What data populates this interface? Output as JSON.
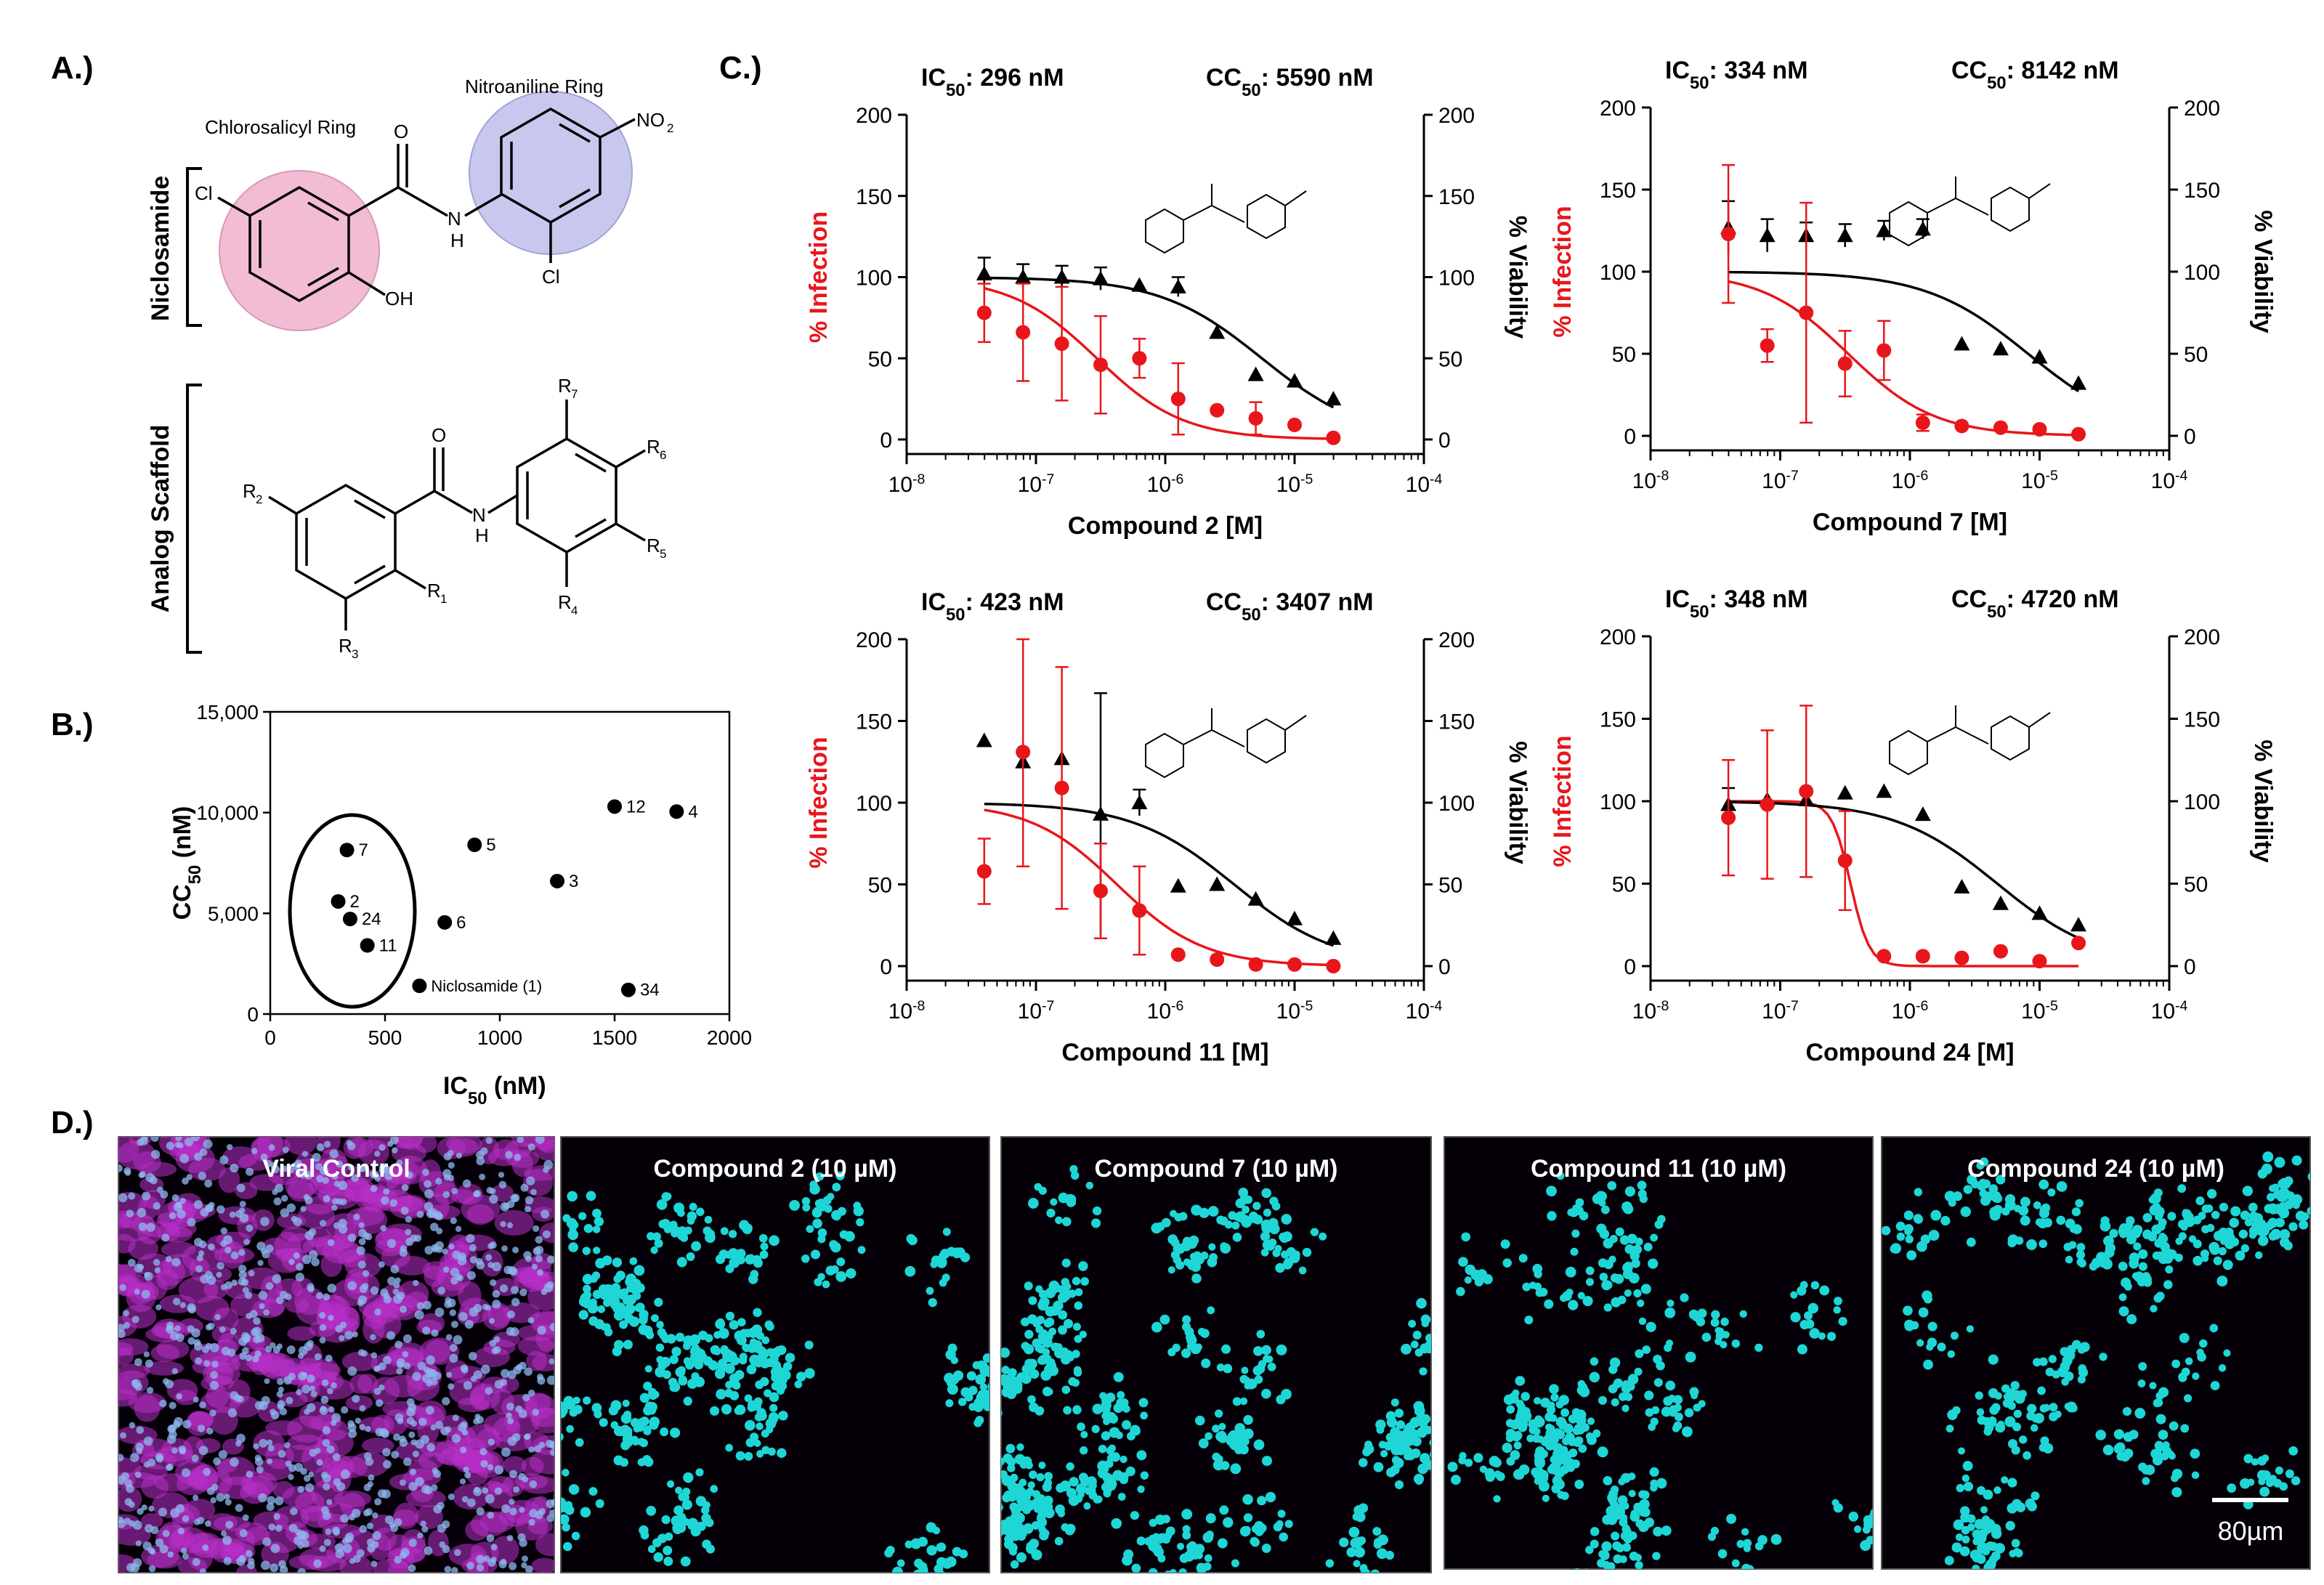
{
  "panels": {
    "A": "A.)",
    "B": "B.)",
    "C": "C.)",
    "D": "D.)"
  },
  "panelA": {
    "ring1": "Chlorosalicyl Ring",
    "ring2": "Nitroaniline Ring",
    "niclosamide_label": "Niclosamide",
    "scaffold_label": "Analog Scaffold",
    "atoms_top": {
      "cl_left": "Cl",
      "o": "O",
      "nh": "H",
      "n": "N",
      "no2": "NO",
      "no2_sub": "2",
      "oh": "OH",
      "cl_bottom": "Cl"
    },
    "atoms_bottom": {
      "r2": "R",
      "r2s": "2",
      "o": "O",
      "nh": "H",
      "n": "N",
      "r1": "R",
      "r1s": "1",
      "r3": "R",
      "r3s": "3",
      "r4": "R",
      "r4s": "4",
      "r5": "R",
      "r5s": "5",
      "r6": "R",
      "r6s": "6",
      "r7": "R",
      "r7s": "7"
    },
    "colors": {
      "ring1": "#f2bcd4",
      "ring2": "#c8c8ee"
    }
  },
  "scatter_chart": {
    "type": "scatter",
    "xlabel": "IC",
    "xlabel_sub": "50",
    "xlabel_unit": " (nM)",
    "ylabel": "CC",
    "ylabel_sub": "50",
    "ylabel_unit": " (nM)",
    "xlim": [
      0,
      2000
    ],
    "ylim": [
      0,
      15000
    ],
    "xticks": [
      0,
      500,
      1000,
      1500,
      2000
    ],
    "xtick_labels": [
      "0",
      "500",
      "1000",
      "1500",
      "2000"
    ],
    "yticks": [
      0,
      5000,
      10000,
      15000
    ],
    "ytick_labels": [
      "0",
      "5,000",
      "10,000",
      "15,000"
    ],
    "points": [
      {
        "label": "7",
        "x": 334,
        "y": 8142
      },
      {
        "label": "2",
        "x": 296,
        "y": 5590
      },
      {
        "label": "24",
        "x": 348,
        "y": 4720
      },
      {
        "label": "11",
        "x": 423,
        "y": 3407
      },
      {
        "label": "Niclosamide (1)",
        "x": 650,
        "y": 1400
      },
      {
        "label": "6",
        "x": 760,
        "y": 4550
      },
      {
        "label": "5",
        "x": 890,
        "y": 8400
      },
      {
        "label": "3",
        "x": 1250,
        "y": 6600
      },
      {
        "label": "12",
        "x": 1500,
        "y": 10300
      },
      {
        "label": "4",
        "x": 1770,
        "y": 10050
      },
      {
        "label": "34",
        "x": 1560,
        "y": 1200
      }
    ]
  },
  "chart_data": [
    {
      "type": "line",
      "id": "c2",
      "ic_label": "IC",
      "ic_sub": "50",
      "ic_value": ": 296 nM",
      "cc_label": "CC",
      "cc_sub": "50",
      "cc_value": ": 5590 nM",
      "xlabel": "Compound 2 [M]",
      "ylabel_left": "% Infection",
      "ylabel_right": "% Viability",
      "ylim": [
        0,
        200
      ],
      "yticks": [
        "0",
        "50",
        "100",
        "150",
        "200"
      ],
      "xtick_base": "10",
      "xtick_exps": [
        "-8",
        "-7",
        "-6",
        "-5",
        "-4"
      ],
      "xlim_log": [
        -8,
        -4
      ],
      "ic50_log": -6.529,
      "cc50_log": -5.253,
      "infection": [
        {
          "x": -7.4,
          "y": 78,
          "err": 18
        },
        {
          "x": -7.1,
          "y": 66,
          "err": 30
        },
        {
          "x": -6.8,
          "y": 59,
          "err": 35
        },
        {
          "x": -6.5,
          "y": 46,
          "err": 30
        },
        {
          "x": -6.2,
          "y": 50,
          "err": 12
        },
        {
          "x": -5.9,
          "y": 25,
          "err": 22
        },
        {
          "x": -5.6,
          "y": 18,
          "err": 0
        },
        {
          "x": -5.3,
          "y": 13,
          "err": 10
        },
        {
          "x": -5.0,
          "y": 9,
          "err": 0
        },
        {
          "x": -4.7,
          "y": 1,
          "err": 0
        }
      ],
      "viability": [
        {
          "x": -7.4,
          "y": 102,
          "err": 10
        },
        {
          "x": -7.1,
          "y": 100,
          "err": 8
        },
        {
          "x": -6.8,
          "y": 100,
          "err": 7
        },
        {
          "x": -6.5,
          "y": 99,
          "err": 7
        },
        {
          "x": -6.2,
          "y": 95,
          "err": 0
        },
        {
          "x": -5.9,
          "y": 94,
          "err": 6
        },
        {
          "x": -5.6,
          "y": 66,
          "err": 0
        },
        {
          "x": -5.3,
          "y": 40,
          "err": 0
        },
        {
          "x": -5.0,
          "y": 36,
          "err": 0
        },
        {
          "x": -4.7,
          "y": 25,
          "err": 0
        }
      ]
    },
    {
      "type": "line",
      "id": "c7",
      "ic_label": "IC",
      "ic_sub": "50",
      "ic_value": ": 334 nM",
      "cc_label": "CC",
      "cc_sub": "50",
      "cc_value": ": 8142 nM",
      "xlabel": "Compound 7 [M]",
      "ylabel_left": "% Infection",
      "ylabel_right": "% Viability",
      "ylim": [
        0,
        200
      ],
      "yticks": [
        "0",
        "50",
        "100",
        "150",
        "200"
      ],
      "xtick_base": "10",
      "xtick_exps": [
        "-8",
        "-7",
        "-6",
        "-5",
        "-4"
      ],
      "xlim_log": [
        -8,
        -4
      ],
      "ic50_log": -6.476,
      "cc50_log": -5.089,
      "infection": [
        {
          "x": -7.4,
          "y": 123,
          "err": 42
        },
        {
          "x": -7.1,
          "y": 55,
          "err": 10
        },
        {
          "x": -6.8,
          "y": 75,
          "err": 67
        },
        {
          "x": -6.5,
          "y": 44,
          "err": 20
        },
        {
          "x": -6.2,
          "y": 52,
          "err": 18
        },
        {
          "x": -5.9,
          "y": 8,
          "err": 5
        },
        {
          "x": -5.6,
          "y": 6,
          "err": 0
        },
        {
          "x": -5.3,
          "y": 5,
          "err": 0
        },
        {
          "x": -5.0,
          "y": 4,
          "err": 0
        },
        {
          "x": -4.7,
          "y": 1,
          "err": 0
        }
      ],
      "viability": [
        {
          "x": -7.4,
          "y": 127,
          "err": 16
        },
        {
          "x": -7.1,
          "y": 122,
          "err": 10
        },
        {
          "x": -6.8,
          "y": 122,
          "err": 8
        },
        {
          "x": -6.5,
          "y": 122,
          "err": 7
        },
        {
          "x": -6.2,
          "y": 125,
          "err": 6
        },
        {
          "x": -5.9,
          "y": 126,
          "err": 6
        },
        {
          "x": -5.6,
          "y": 56,
          "err": 0
        },
        {
          "x": -5.3,
          "y": 53,
          "err": 0
        },
        {
          "x": -5.0,
          "y": 48,
          "err": 0
        },
        {
          "x": -4.7,
          "y": 32,
          "err": 0
        }
      ]
    },
    {
      "type": "line",
      "id": "c11",
      "ic_label": "IC",
      "ic_sub": "50",
      "ic_value": ": 423 nM",
      "cc_label": "CC",
      "cc_sub": "50",
      "cc_value": ": 3407 nM",
      "xlabel": "Compound 11 [M]",
      "ylabel_left": "% Infection",
      "ylabel_right": "% Viability",
      "ylim": [
        0,
        200
      ],
      "yticks": [
        "0",
        "50",
        "100",
        "150",
        "200"
      ],
      "xtick_base": "10",
      "xtick_exps": [
        "-8",
        "-7",
        "-6",
        "-5",
        "-4"
      ],
      "xlim_log": [
        -8,
        -4
      ],
      "ic50_log": -6.374,
      "cc50_log": -5.468,
      "infection": [
        {
          "x": -7.4,
          "y": 58,
          "err": 20
        },
        {
          "x": -7.1,
          "y": 131,
          "err": 70
        },
        {
          "x": -6.8,
          "y": 109,
          "err": 74
        },
        {
          "x": -6.5,
          "y": 46,
          "err": 29
        },
        {
          "x": -6.2,
          "y": 34,
          "err": 27
        },
        {
          "x": -5.9,
          "y": 7,
          "err": 0
        },
        {
          "x": -5.6,
          "y": 4,
          "err": 0
        },
        {
          "x": -5.3,
          "y": 1,
          "err": 0
        },
        {
          "x": -5.0,
          "y": 1,
          "err": 0
        },
        {
          "x": -4.7,
          "y": 0,
          "err": 0
        }
      ],
      "viability": [
        {
          "x": -7.4,
          "y": 138,
          "err": 0
        },
        {
          "x": -7.1,
          "y": 125,
          "err": 0
        },
        {
          "x": -6.8,
          "y": 127,
          "err": 0
        },
        {
          "x": -6.5,
          "y": 93,
          "err": 74
        },
        {
          "x": -6.2,
          "y": 100,
          "err": 8
        },
        {
          "x": -5.9,
          "y": 49,
          "err": 0
        },
        {
          "x": -5.6,
          "y": 50,
          "err": 0
        },
        {
          "x": -5.3,
          "y": 41,
          "err": 0
        },
        {
          "x": -5.0,
          "y": 29,
          "err": 0
        },
        {
          "x": -4.7,
          "y": 17,
          "err": 0
        }
      ]
    },
    {
      "type": "line",
      "id": "c24",
      "ic_label": "IC",
      "ic_sub": "50",
      "ic_value": ": 348 nM",
      "cc_label": "CC",
      "cc_sub": "50",
      "cc_value": ": 4720 nM",
      "xlabel": "Compound 24 [M]",
      "ylabel_left": "% Infection",
      "ylabel_right": "% Viability",
      "ylim": [
        0,
        200
      ],
      "yticks": [
        "0",
        "50",
        "100",
        "150",
        "200"
      ],
      "xtick_base": "10",
      "xtick_exps": [
        "-8",
        "-7",
        "-6",
        "-5",
        "-4"
      ],
      "xlim_log": [
        -8,
        -4
      ],
      "ic50_log": -6.458,
      "cc50_log": -5.326,
      "infection": [
        {
          "x": -7.4,
          "y": 90,
          "err": 35
        },
        {
          "x": -7.1,
          "y": 98,
          "err": 45
        },
        {
          "x": -6.8,
          "y": 106,
          "err": 52
        },
        {
          "x": -6.5,
          "y": 64,
          "err": 30
        },
        {
          "x": -6.2,
          "y": 6,
          "err": 0
        },
        {
          "x": -5.9,
          "y": 6,
          "err": 0
        },
        {
          "x": -5.6,
          "y": 5,
          "err": 0
        },
        {
          "x": -5.3,
          "y": 9,
          "err": 0
        },
        {
          "x": -5.0,
          "y": 3,
          "err": 0
        },
        {
          "x": -4.7,
          "y": 14,
          "err": 0
        }
      ],
      "viability": [
        {
          "x": -7.4,
          "y": 98,
          "err": 10
        },
        {
          "x": -7.1,
          "y": 101,
          "err": 0
        },
        {
          "x": -6.8,
          "y": 101,
          "err": 0
        },
        {
          "x": -6.5,
          "y": 105,
          "err": 0
        },
        {
          "x": -6.2,
          "y": 106,
          "err": 0
        },
        {
          "x": -5.9,
          "y": 92,
          "err": 0
        },
        {
          "x": -5.6,
          "y": 48,
          "err": 0
        },
        {
          "x": -5.3,
          "y": 38,
          "err": 0
        },
        {
          "x": -5.0,
          "y": 32,
          "err": 0
        },
        {
          "x": -4.7,
          "y": 25,
          "err": 0
        }
      ]
    }
  ],
  "microscopy": {
    "panels": [
      {
        "label": "Viral Control",
        "type": "infected"
      },
      {
        "label": "Compound 2 (10 µM)",
        "type": "nuclei",
        "density": 0.9
      },
      {
        "label": "Compound 7 (10 µM)",
        "type": "nuclei",
        "density": 1.0
      },
      {
        "label": "Compound 11 (10 µM)",
        "type": "nuclei",
        "density": 0.75
      },
      {
        "label": "Compound 24 (10 µM)",
        "type": "nuclei",
        "density": 0.8
      }
    ],
    "scalebar": "80µm",
    "colors": {
      "nuclei": "#1fd6d6",
      "virus": "#b82fc8",
      "background": "#050008"
    }
  },
  "colors": {
    "infection": "#e8161b",
    "viability": "#000000"
  }
}
